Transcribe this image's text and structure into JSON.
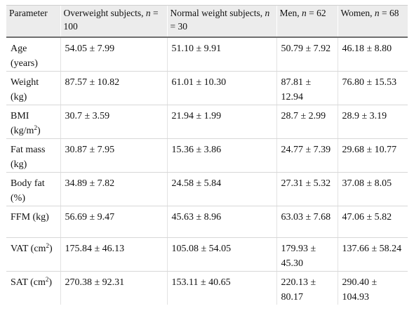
{
  "table": {
    "headers": {
      "parameter": "Parameter",
      "overweight_prefix": "Overweight subjects, ",
      "overweight_n": "n",
      "overweight_suffix": " = 100",
      "normal_prefix": "Normal weight subjects, ",
      "normal_n": "n",
      "normal_suffix": " = 30",
      "men_prefix": "Men, ",
      "men_n": "n",
      "men_suffix": " = 62",
      "women_prefix": "Women, ",
      "women_n": "n",
      "women_suffix": " = 68"
    },
    "rows": [
      {
        "param": "Age (years)",
        "overweight": "54.05 ± 7.99",
        "normal": "51.10 ± 9.91",
        "men": "50.79 ± 7.92",
        "women": "46.18 ± 8.80"
      },
      {
        "param": "Weight (kg)",
        "overweight": "87.57 ± 10.82",
        "normal": "61.01 ± 10.30",
        "men": "87.81 ± 12.94",
        "women": "76.80 ± 15.53"
      },
      {
        "param": "BMI (kg/m",
        "param_sup": "2",
        "param_suffix": ")",
        "overweight": "30.7 ± 3.59",
        "normal": "21.94 ± 1.99",
        "men": "28.7 ± 2.99",
        "women": "28.9 ± 3.19"
      },
      {
        "param": "Fat mass (kg)",
        "overweight": "30.87 ± 7.95",
        "normal": "15.36 ± 3.86",
        "men": "24.77 ± 7.39",
        "women": "29.68 ± 10.77"
      },
      {
        "param": "Body fat (%)",
        "overweight": "34.89 ± 7.82",
        "normal": "24.58 ± 5.84",
        "men": "27.31 ± 5.32",
        "women": "37.08 ± 8.05"
      },
      {
        "param": "FFM (kg)",
        "overweight": "56.69 ± 9.47",
        "normal": "45.63 ± 8.96",
        "men": "63.03 ± 7.68",
        "women": "47.06 ± 5.82"
      },
      {
        "param": "VAT (cm",
        "param_sup": "2",
        "param_suffix": ")",
        "overweight": "175.84 ± 46.13",
        "normal": "105.08 ± 54.05",
        "men": "179.93 ± 45.30",
        "women": "137.66 ± 58.24"
      },
      {
        "param": "SAT (cm",
        "param_sup": "2",
        "param_suffix": ")",
        "overweight": "270.38 ± 92.31",
        "normal": "153.11 ± 40.65",
        "men": "220.13 ± 80.17",
        "women": "290.40 ± 104.93"
      }
    ]
  }
}
